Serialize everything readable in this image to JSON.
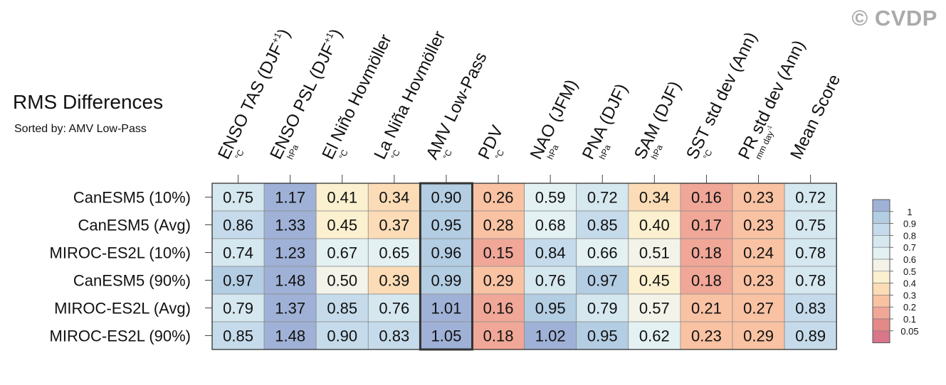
{
  "header": {
    "title": "RMS Differences",
    "subtitle": "Sorted by: AMV Low-Pass",
    "watermark": "© CVDP"
  },
  "chart_data": {
    "type": "heatmap",
    "title": "RMS Differences",
    "subtitle": "Sorted by: AMV Low-Pass",
    "columns": [
      {
        "label": "ENSO TAS (DJF",
        "sup": "+1",
        "close": ")",
        "unit": "°C"
      },
      {
        "label": "ENSO PSL (DJF",
        "sup": "+1",
        "close": ")",
        "unit": "hPa"
      },
      {
        "label": "El Niño Hovmöller",
        "sup": "",
        "close": "",
        "unit": "°C"
      },
      {
        "label": "La Niña Hovmöller",
        "sup": "",
        "close": "",
        "unit": "°C"
      },
      {
        "label": "AMV Low-Pass",
        "sup": "",
        "close": "",
        "unit": "°C"
      },
      {
        "label": "PDV",
        "sup": "",
        "close": "",
        "unit": "°C"
      },
      {
        "label": "NAO (JFM)",
        "sup": "",
        "close": "",
        "unit": "hPa"
      },
      {
        "label": "PNA (DJF)",
        "sup": "",
        "close": "",
        "unit": "hPa"
      },
      {
        "label": "SAM (DJF)",
        "sup": "",
        "close": "",
        "unit": "hPa"
      },
      {
        "label": "SST std dev (Ann)",
        "sup": "",
        "close": "",
        "unit": "°C"
      },
      {
        "label": "PR std dev (Ann)",
        "sup": "",
        "close": "",
        "unit": "mm day",
        "unit_sup": "-1"
      },
      {
        "label": "Mean Score",
        "sup": "",
        "close": "",
        "unit": ""
      }
    ],
    "rows": [
      "CanESM5 (10%)",
      "CanESM5 (Avg)",
      "MIROC-ES2L (10%)",
      "CanESM5 (90%)",
      "MIROC-ES2L (Avg)",
      "MIROC-ES2L (90%)"
    ],
    "values": [
      [
        "0.75",
        "1.17",
        "0.41",
        "0.34",
        "0.90",
        "0.26",
        "0.59",
        "0.72",
        "0.34",
        "0.16",
        "0.23",
        "0.72"
      ],
      [
        "0.86",
        "1.33",
        "0.45",
        "0.37",
        "0.95",
        "0.28",
        "0.68",
        "0.85",
        "0.40",
        "0.17",
        "0.23",
        "0.75"
      ],
      [
        "0.74",
        "1.23",
        "0.67",
        "0.65",
        "0.96",
        "0.15",
        "0.84",
        "0.66",
        "0.51",
        "0.18",
        "0.24",
        "0.78"
      ],
      [
        "0.97",
        "1.48",
        "0.50",
        "0.39",
        "0.99",
        "0.29",
        "0.76",
        "0.97",
        "0.45",
        "0.18",
        "0.23",
        "0.78"
      ],
      [
        "0.79",
        "1.37",
        "0.85",
        "0.76",
        "1.01",
        "0.16",
        "0.95",
        "0.79",
        "0.57",
        "0.21",
        "0.27",
        "0.83"
      ],
      [
        "0.85",
        "1.48",
        "0.90",
        "0.83",
        "1.05",
        "0.18",
        "1.02",
        "0.95",
        "0.62",
        "0.23",
        "0.29",
        "0.89"
      ]
    ],
    "cell_colors": [
      [
        "#d5e7ef",
        "#9fb1d6",
        "#fbf0cf",
        "#fbdcb6",
        "#b3cde3",
        "#f9c2a3",
        "#e4f1f3",
        "#d5e7ef",
        "#fbdcb6",
        "#f0a797",
        "#f9c2a3",
        "#d5e7ef"
      ],
      [
        "#c5dbeb",
        "#9fb1d6",
        "#fbf0cf",
        "#fbdcb6",
        "#b3cde3",
        "#f9c2a3",
        "#e4f1f3",
        "#c5dbeb",
        "#fbf0cf",
        "#f0a797",
        "#f9c2a3",
        "#d5e7ef"
      ],
      [
        "#d5e7ef",
        "#9fb1d6",
        "#e4f1f3",
        "#e4f1f3",
        "#b3cde3",
        "#f0a797",
        "#c5dbeb",
        "#e4f1f3",
        "#f3f3ea",
        "#f0a797",
        "#f9c2a3",
        "#d5e7ef"
      ],
      [
        "#b3cde3",
        "#9fb1d6",
        "#f3f3ea",
        "#fbdcb6",
        "#b3cde3",
        "#f9c2a3",
        "#d5e7ef",
        "#b3cde3",
        "#fbf0cf",
        "#f0a797",
        "#f9c2a3",
        "#d5e7ef"
      ],
      [
        "#d5e7ef",
        "#9fb1d6",
        "#c5dbeb",
        "#d5e7ef",
        "#9fb1d6",
        "#f0a797",
        "#b3cde3",
        "#d5e7ef",
        "#f3f3ea",
        "#f9c2a3",
        "#f9c2a3",
        "#c5dbeb"
      ],
      [
        "#c5dbeb",
        "#9fb1d6",
        "#c5dbeb",
        "#c5dbeb",
        "#9fb1d6",
        "#f0a797",
        "#9fb1d6",
        "#b3cde3",
        "#e4f1f3",
        "#f9c2a3",
        "#f9c2a3",
        "#c5dbeb"
      ]
    ],
    "highlight_column": "AMV Low-Pass",
    "colorbar": {
      "ticks": [
        "1",
        "0.9",
        "0.8",
        "0.7",
        "0.6",
        "0.5",
        "0.4",
        "0.3",
        "0.2",
        "0.1",
        "0.05"
      ],
      "colors": [
        "#9fb1d6",
        "#b3cde3",
        "#c5dbeb",
        "#d5e7ef",
        "#e4f1f3",
        "#f3f3ea",
        "#fbf0cf",
        "#fbdcb6",
        "#f9c2a3",
        "#f0a797",
        "#e38a88",
        "#d9768a"
      ]
    }
  }
}
